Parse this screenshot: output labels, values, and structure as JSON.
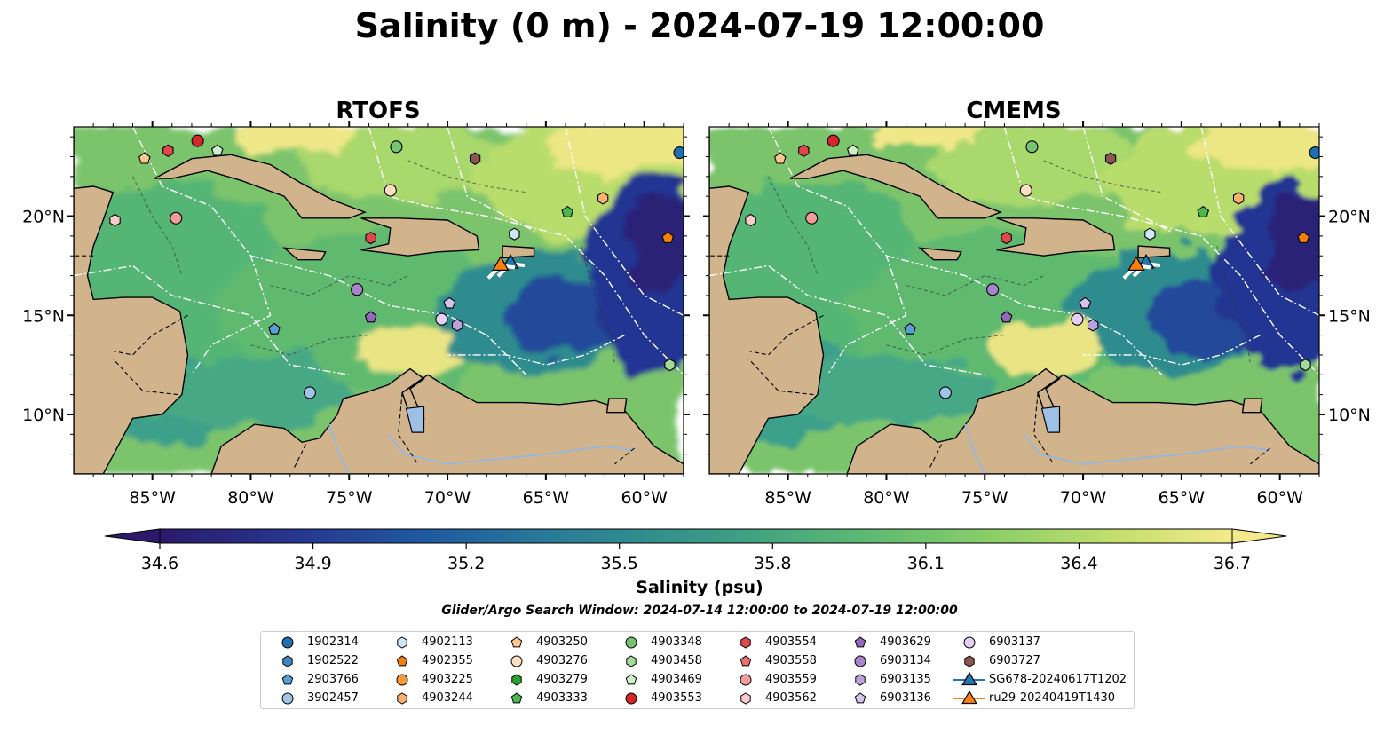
{
  "title": "Salinity (0 m) - 2024-07-19 12:00:00",
  "panels": [
    {
      "title": "RTOFS",
      "model": "rtofs"
    },
    {
      "title": "CMEMS",
      "model": "cmems"
    }
  ],
  "map_extent": {
    "lon": [
      -89,
      -58
    ],
    "lat": [
      7,
      24.5
    ]
  },
  "lon_ticks": [
    "85°W",
    "80°W",
    "75°W",
    "70°W",
    "65°W",
    "60°W"
  ],
  "lat_ticks": [
    "10°N",
    "15°N",
    "20°N"
  ],
  "colorbar": {
    "label": "Salinity (psu)",
    "vmin": 34.6,
    "vmax": 36.7,
    "ticks": [
      "34.6",
      "34.9",
      "35.2",
      "35.5",
      "35.8",
      "36.1",
      "36.4",
      "36.7"
    ],
    "colors": [
      "#2b1a6b",
      "#27358f",
      "#1f5aa0",
      "#2b7f96",
      "#3a9a86",
      "#5ab873",
      "#8ccf68",
      "#c7e06f",
      "#f5ea8a"
    ]
  },
  "search_window": "Glider/Argo Search Window: 2024-07-14 12:00:00 to 2024-07-19 12:00:00",
  "land_color": "#d1b48c",
  "legend": [
    {
      "label": "1902314",
      "marker": "circle",
      "color": "#1f6fb2"
    },
    {
      "label": "1902522",
      "marker": "hexagon",
      "color": "#3f86c0"
    },
    {
      "label": "2903766",
      "marker": "pentagon",
      "color": "#5a9fd4"
    },
    {
      "label": "3902457",
      "marker": "circle",
      "color": "#9ec4e8"
    },
    {
      "label": "4902113",
      "marker": "hexagon",
      "color": "#cfe6f8"
    },
    {
      "label": "4902355",
      "marker": "pentagon",
      "color": "#f57f0e"
    },
    {
      "label": "4903225",
      "marker": "circle",
      "color": "#f59a3c"
    },
    {
      "label": "4903244",
      "marker": "hexagon",
      "color": "#fbb26e"
    },
    {
      "label": "4903250",
      "marker": "pentagon",
      "color": "#fcc890"
    },
    {
      "label": "4903276",
      "marker": "circle",
      "color": "#fde0c2"
    },
    {
      "label": "4903279",
      "marker": "hexagon",
      "color": "#2ca02c"
    },
    {
      "label": "4903333",
      "marker": "pentagon",
      "color": "#4cb84c"
    },
    {
      "label": "4903348",
      "marker": "circle",
      "color": "#74c474"
    },
    {
      "label": "4903458",
      "marker": "hexagon",
      "color": "#a1dc98"
    },
    {
      "label": "4903469",
      "marker": "pentagon",
      "color": "#ccf0c8"
    },
    {
      "label": "4903553",
      "marker": "circle",
      "color": "#d62728"
    },
    {
      "label": "4903554",
      "marker": "hexagon",
      "color": "#e0474a"
    },
    {
      "label": "4903558",
      "marker": "pentagon",
      "color": "#ea7070"
    },
    {
      "label": "4903559",
      "marker": "circle",
      "color": "#f29b9b"
    },
    {
      "label": "4903562",
      "marker": "hexagon",
      "color": "#fbcaca"
    },
    {
      "label": "4903629",
      "marker": "pentagon",
      "color": "#9467bd"
    },
    {
      "label": "6903134",
      "marker": "circle",
      "color": "#a884cc"
    },
    {
      "label": "6903135",
      "marker": "hexagon",
      "color": "#bca2dc"
    },
    {
      "label": "6903136",
      "marker": "pentagon",
      "color": "#d6c4ee"
    },
    {
      "label": "6903137",
      "marker": "circle",
      "color": "#e4d0f5"
    },
    {
      "label": "6903727",
      "marker": "hexagon",
      "color": "#8c564b"
    },
    {
      "label": "SG678-20240617T1202",
      "marker": "triangle-line",
      "color": "#1f77b4"
    },
    {
      "label": "ru29-20240419T1430",
      "marker": "triangle-line",
      "color": "#ff7f0e"
    }
  ],
  "floats": [
    {
      "id": "1902314",
      "lon": -58.2,
      "lat": 23.2
    },
    {
      "id": "4903553",
      "lon": -82.7,
      "lat": 23.8
    },
    {
      "id": "4903554",
      "lon": -84.2,
      "lat": 23.3
    },
    {
      "id": "4903250",
      "lon": -85.4,
      "lat": 22.9
    },
    {
      "id": "4903469",
      "lon": -81.7,
      "lat": 23.3
    },
    {
      "id": "4903348",
      "lon": -72.6,
      "lat": 23.5
    },
    {
      "id": "6903727",
      "lon": -68.6,
      "lat": 22.9
    },
    {
      "id": "4903276",
      "lon": -72.9,
      "lat": 21.3
    },
    {
      "id": "4903244",
      "lon": -62.1,
      "lat": 20.9
    },
    {
      "id": "4903333",
      "lon": -63.9,
      "lat": 20.2
    },
    {
      "id": "4902355",
      "lon": -58.8,
      "lat": 18.9
    },
    {
      "id": "4903562",
      "lon": -86.9,
      "lat": 19.8
    },
    {
      "id": "4903559",
      "lon": -83.8,
      "lat": 19.9
    },
    {
      "id": "4903554",
      "lon": -73.9,
      "lat": 18.9
    },
    {
      "id": "4902113",
      "lon": -66.6,
      "lat": 19.1
    },
    {
      "id": "6903134",
      "lon": -74.6,
      "lat": 16.3
    },
    {
      "id": "4903629",
      "lon": -73.9,
      "lat": 14.9
    },
    {
      "id": "6903136",
      "lon": -69.9,
      "lat": 15.6
    },
    {
      "id": "6903137",
      "lon": -70.3,
      "lat": 14.8
    },
    {
      "id": "6903135",
      "lon": -69.5,
      "lat": 14.5
    },
    {
      "id": "2903766",
      "lon": -78.8,
      "lat": 14.3
    },
    {
      "id": "3902457",
      "lon": -77.0,
      "lat": 11.1
    },
    {
      "id": "4903458",
      "lon": -58.7,
      "lat": 12.5
    }
  ],
  "gliders": [
    {
      "id": "SG678-20240617T1202",
      "lon": -66.8,
      "lat": 17.6
    },
    {
      "id": "ru29-20240419T1430",
      "lon": -67.3,
      "lat": 17.5
    }
  ]
}
